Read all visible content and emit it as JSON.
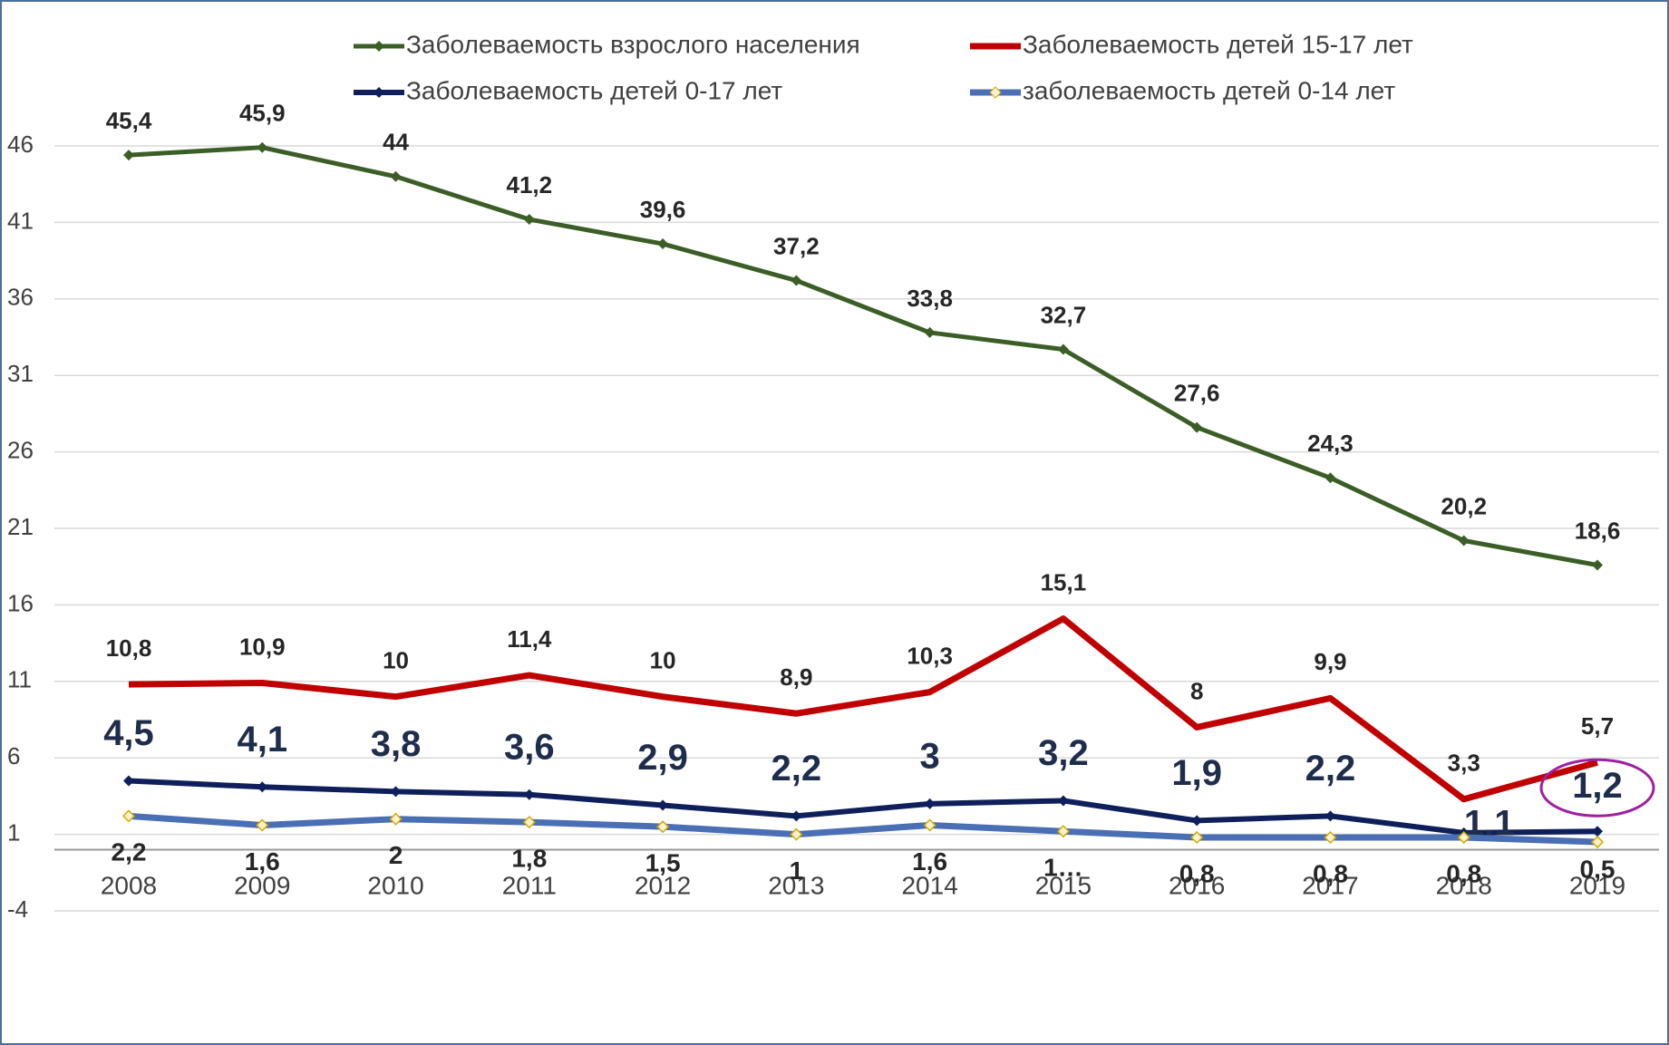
{
  "chart_data": {
    "type": "line",
    "categories": [
      "2008",
      "2009",
      "2010",
      "2011",
      "2012",
      "2013",
      "2014",
      "2015",
      "2016",
      "2017",
      "2018",
      "2019"
    ],
    "ylim": [
      -4,
      46
    ],
    "yticks": [
      -4,
      1,
      6,
      11,
      16,
      21,
      26,
      31,
      36,
      41,
      46
    ],
    "grid": true,
    "legend": "top",
    "series": [
      {
        "name": "Заболеваемость взрослого населения",
        "color": "#3b5e27",
        "marker": "diamond",
        "values": [
          45.4,
          45.9,
          44,
          41.2,
          39.6,
          37.2,
          33.8,
          32.7,
          27.6,
          24.3,
          20.2,
          18.6
        ],
        "value_labels": [
          "45,4",
          "45,9",
          "44",
          "41,2",
          "39,6",
          "37,2",
          "33,8",
          "32,7",
          "27,6",
          "24,3",
          "20,2",
          "18,6"
        ]
      },
      {
        "name": "Заболеваемость детей 15-17 лет",
        "color": "#c00000",
        "marker": "none",
        "values": [
          10.8,
          10.9,
          10,
          11.4,
          10,
          8.9,
          10.3,
          15.1,
          8,
          9.9,
          3.3,
          5.7
        ],
        "value_labels": [
          "10,8",
          "10,9",
          "10",
          "11,4",
          "10",
          "8,9",
          "10,3",
          "15,1",
          "8",
          "9,9",
          "3,3",
          "5,7"
        ]
      },
      {
        "name": "Заболеваемость детей 0-17 лет",
        "color": "#0f1f5c",
        "marker": "diamond",
        "values": [
          4.5,
          4.1,
          3.8,
          3.6,
          2.9,
          2.2,
          3,
          3.2,
          1.9,
          2.2,
          1.1,
          1.2
        ],
        "value_labels": [
          "4,5",
          "4,1",
          "3,8",
          "3,6",
          "2,9",
          "2,2",
          "3",
          "3,2",
          "1,9",
          "2,2",
          "1,1",
          "1,2"
        ]
      },
      {
        "name": "заболеваемость детей 0-14 лет",
        "color": "#4a6fb5",
        "marker": "diamond-yellow",
        "values": [
          2.2,
          1.6,
          2,
          1.8,
          1.5,
          1,
          1.6,
          1.2,
          0.8,
          0.8,
          0.8,
          0.5
        ],
        "value_labels": [
          "2,2",
          "1,6",
          "2",
          "1,8",
          "1,5",
          "1",
          "1,6",
          "1…",
          "0,8",
          "0,8",
          "0,8",
          "0,5"
        ]
      }
    ]
  }
}
